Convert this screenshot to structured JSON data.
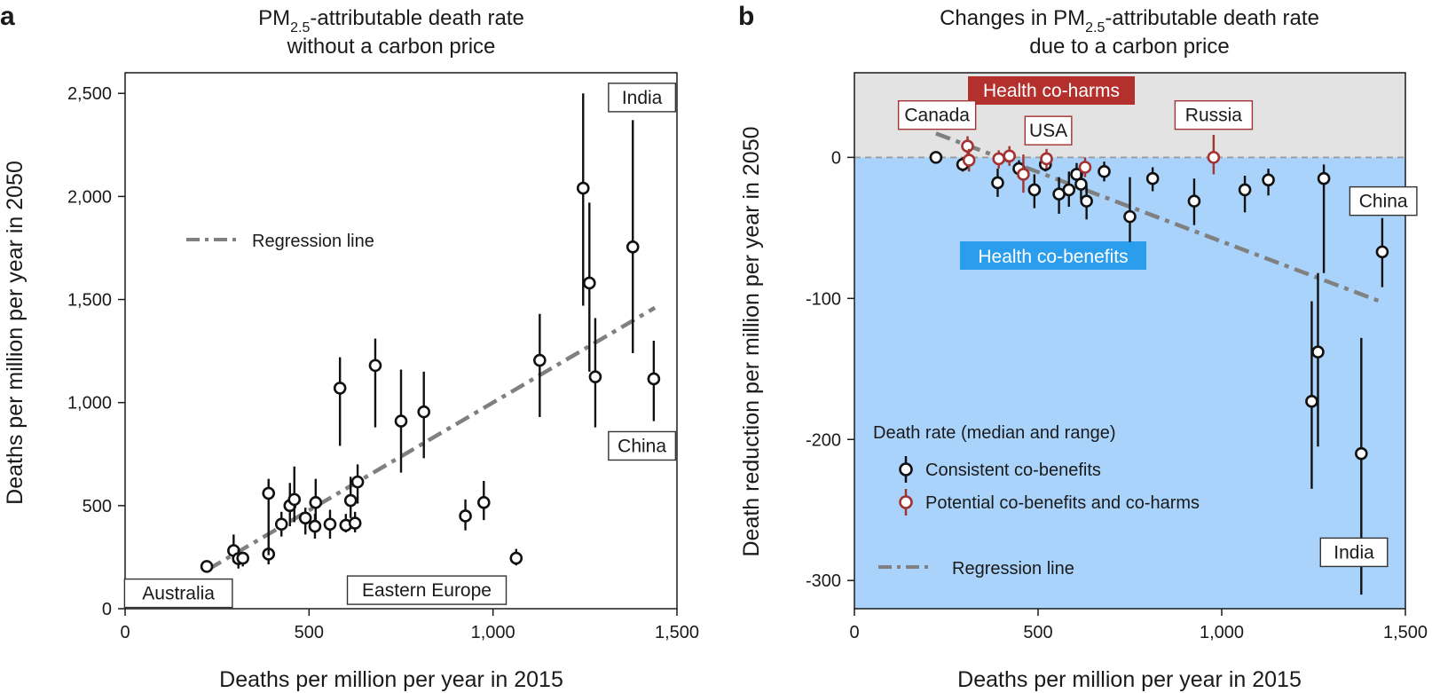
{
  "panel_a": {
    "letter": "a",
    "title_line1_pre": "PM",
    "title_line1_sub": "2.5",
    "title_line1_post": "-attributable death rate",
    "title_line2": "without a carbon price"
  },
  "panel_b": {
    "letter": "b",
    "title_line1_pre": "Changes in PM",
    "title_line1_sub": "2.5",
    "title_line1_post": "-attributable death rate",
    "title_line2": "due to a carbon price",
    "band_coharms": "Health co-harms",
    "band_cobenefits": "Health co-benefits",
    "legend_title": "Death rate (median and range)",
    "legend_consistent": "Consistent co-benefits",
    "legend_potential": "Potential co-benefits and co-harms",
    "legend_regression": "Regression line"
  },
  "colors": {
    "black": "#111111",
    "red": "#a33230",
    "regression": "#808080",
    "cobenefit_bg": "#a9d3fb",
    "coharm_bg": "#e3e3e3",
    "coharm_label_bg": "#b3302d",
    "cobenefit_label_bg": "#2b9ded"
  },
  "chart_data": [
    {
      "type": "scatter",
      "title": "PM2.5-attributable death rate without a carbon price",
      "xlabel": "Deaths per million per year in 2015",
      "ylabel": "Deaths per million per year in 2050",
      "xlim": [
        0,
        1500
      ],
      "ylim": [
        0,
        2600
      ],
      "xticks": [
        0,
        500,
        1000,
        1500
      ],
      "xtick_labels": [
        "0",
        "500",
        "1,000",
        "1,500"
      ],
      "yticks": [
        0,
        500,
        1000,
        1500,
        2000,
        2500
      ],
      "ytick_labels": [
        "0",
        "500",
        "1,000",
        "1,500",
        "2,000",
        "2,500"
      ],
      "legend": "Regression line",
      "regression": {
        "x": [
          225,
          1440
        ],
        "y": [
          190,
          1460
        ]
      },
      "points": [
        {
          "x": 222,
          "y": 205,
          "lo": 175,
          "hi": 235
        },
        {
          "x": 295,
          "y": 282,
          "lo": 225,
          "hi": 360
        },
        {
          "x": 308,
          "y": 243,
          "lo": 195,
          "hi": 285
        },
        {
          "x": 320,
          "y": 245,
          "lo": 205,
          "hi": 275
        },
        {
          "x": 390,
          "y": 265,
          "lo": 215,
          "hi": 305
        },
        {
          "x": 390,
          "y": 560,
          "lo": 260,
          "hi": 630
        },
        {
          "x": 425,
          "y": 410,
          "lo": 350,
          "hi": 470
        },
        {
          "x": 448,
          "y": 500,
          "lo": 400,
          "hi": 610
        },
        {
          "x": 460,
          "y": 530,
          "lo": 420,
          "hi": 690
        },
        {
          "x": 490,
          "y": 440,
          "lo": 360,
          "hi": 490
        },
        {
          "x": 516,
          "y": 400,
          "lo": 340,
          "hi": 460
        },
        {
          "x": 518,
          "y": 515,
          "lo": 430,
          "hi": 630
        },
        {
          "x": 557,
          "y": 410,
          "lo": 340,
          "hi": 480
        },
        {
          "x": 584,
          "y": 1070,
          "lo": 790,
          "hi": 1220
        },
        {
          "x": 600,
          "y": 405,
          "lo": 370,
          "hi": 460
        },
        {
          "x": 613,
          "y": 525,
          "lo": 440,
          "hi": 640
        },
        {
          "x": 625,
          "y": 415,
          "lo": 370,
          "hi": 470
        },
        {
          "x": 632,
          "y": 615,
          "lo": 510,
          "hi": 700
        },
        {
          "x": 680,
          "y": 1180,
          "lo": 880,
          "hi": 1310
        },
        {
          "x": 750,
          "y": 910,
          "lo": 660,
          "hi": 1160
        },
        {
          "x": 812,
          "y": 955,
          "lo": 730,
          "hi": 1150
        },
        {
          "x": 925,
          "y": 450,
          "lo": 380,
          "hi": 530
        },
        {
          "x": 975,
          "y": 515,
          "lo": 430,
          "hi": 620
        },
        {
          "x": 1063,
          "y": 245,
          "lo": 210,
          "hi": 290
        },
        {
          "x": 1127,
          "y": 1205,
          "lo": 930,
          "hi": 1430
        },
        {
          "x": 1245,
          "y": 2040,
          "lo": 1470,
          "hi": 2500
        },
        {
          "x": 1262,
          "y": 1580,
          "lo": 1150,
          "hi": 1970
        },
        {
          "x": 1278,
          "y": 1125,
          "lo": 880,
          "hi": 1410
        },
        {
          "x": 1380,
          "y": 1755,
          "lo": 1240,
          "hi": 2370
        },
        {
          "x": 1437,
          "y": 1115,
          "lo": 910,
          "hi": 1300
        }
      ],
      "annotations": [
        {
          "label": "India",
          "x": 1405,
          "y": 2480
        },
        {
          "label": "China",
          "x": 1405,
          "y": 790
        },
        {
          "label": "Australia",
          "x": 145,
          "y": 75
        },
        {
          "label": "Eastern Europe",
          "x": 820,
          "y": 90
        }
      ]
    },
    {
      "type": "scatter",
      "title": "Changes in PM2.5-attributable death rate due to a carbon price",
      "xlabel": "Deaths per million per year in 2015",
      "ylabel": "Death reduction per million per year in 2050",
      "xlim": [
        0,
        1500
      ],
      "ylim": [
        -320,
        60
      ],
      "xticks": [
        0,
        500,
        1000,
        1500
      ],
      "xtick_labels": [
        "0",
        "500",
        "1,000",
        "1,500"
      ],
      "yticks": [
        -300,
        -200,
        -100,
        0
      ],
      "ytick_labels": [
        "-300",
        "-200",
        "-100",
        "0"
      ],
      "legend": [
        "Consistent co-benefits",
        "Potential co-benefits and co-harms",
        "Regression line"
      ],
      "regression": {
        "x": [
          222,
          1440
        ],
        "y": [
          17,
          -103
        ]
      },
      "points": [
        {
          "x": 222,
          "y": 0,
          "lo": -2,
          "hi": 1,
          "group": "consistent"
        },
        {
          "x": 295,
          "y": -5,
          "lo": -10,
          "hi": 0,
          "group": "consistent"
        },
        {
          "x": 308,
          "y": 8,
          "lo": -2,
          "hi": 15,
          "group": "potential"
        },
        {
          "x": 312,
          "y": -2,
          "lo": -10,
          "hi": 6,
          "group": "potential"
        },
        {
          "x": 390,
          "y": -18,
          "lo": -28,
          "hi": -8,
          "group": "consistent"
        },
        {
          "x": 393,
          "y": -1,
          "lo": -8,
          "hi": 5,
          "group": "potential"
        },
        {
          "x": 422,
          "y": 1,
          "lo": -6,
          "hi": 8,
          "group": "potential"
        },
        {
          "x": 448,
          "y": -8,
          "lo": -14,
          "hi": -2,
          "group": "consistent"
        },
        {
          "x": 460,
          "y": -12,
          "lo": -25,
          "hi": 2,
          "group": "potential"
        },
        {
          "x": 490,
          "y": -23,
          "lo": -36,
          "hi": -12,
          "group": "consistent"
        },
        {
          "x": 520,
          "y": -5,
          "lo": -10,
          "hi": 0,
          "group": "consistent"
        },
        {
          "x": 523,
          "y": -1,
          "lo": -8,
          "hi": 6,
          "group": "potential"
        },
        {
          "x": 557,
          "y": -26,
          "lo": -40,
          "hi": -14,
          "group": "consistent"
        },
        {
          "x": 584,
          "y": -23,
          "lo": -35,
          "hi": -10,
          "group": "consistent"
        },
        {
          "x": 605,
          "y": -12,
          "lo": -22,
          "hi": -4,
          "group": "consistent"
        },
        {
          "x": 617,
          "y": -19,
          "lo": -30,
          "hi": -8,
          "group": "consistent"
        },
        {
          "x": 628,
          "y": -7,
          "lo": -14,
          "hi": 0,
          "group": "potential"
        },
        {
          "x": 632,
          "y": -31,
          "lo": -44,
          "hi": -20,
          "group": "consistent"
        },
        {
          "x": 680,
          "y": -10,
          "lo": -17,
          "hi": -3,
          "group": "consistent"
        },
        {
          "x": 750,
          "y": -42,
          "lo": -60,
          "hi": -14,
          "group": "consistent"
        },
        {
          "x": 812,
          "y": -15,
          "lo": -24,
          "hi": -7,
          "group": "consistent"
        },
        {
          "x": 925,
          "y": -31,
          "lo": -48,
          "hi": -15,
          "group": "consistent"
        },
        {
          "x": 978,
          "y": 0,
          "lo": -12,
          "hi": 16,
          "group": "potential"
        },
        {
          "x": 1063,
          "y": -23,
          "lo": -39,
          "hi": -13,
          "group": "consistent"
        },
        {
          "x": 1127,
          "y": -16,
          "lo": -27,
          "hi": -8,
          "group": "consistent"
        },
        {
          "x": 1245,
          "y": -173,
          "lo": -235,
          "hi": -102,
          "group": "consistent"
        },
        {
          "x": 1262,
          "y": -138,
          "lo": -205,
          "hi": -82,
          "group": "consistent"
        },
        {
          "x": 1278,
          "y": -15,
          "lo": -82,
          "hi": -5,
          "group": "consistent"
        },
        {
          "x": 1380,
          "y": -210,
          "lo": -310,
          "hi": -128,
          "group": "consistent"
        },
        {
          "x": 1437,
          "y": -67,
          "lo": -92,
          "hi": -43,
          "group": "consistent"
        }
      ],
      "annotations": [
        {
          "label": "Canada",
          "x": 225,
          "y": 30,
          "color": "red"
        },
        {
          "label": "USA",
          "x": 528,
          "y": 19,
          "color": "red"
        },
        {
          "label": "Russia",
          "x": 978,
          "y": 30,
          "color": "red"
        },
        {
          "label": "China",
          "x": 1440,
          "y": -31,
          "color": "black"
        },
        {
          "label": "India",
          "x": 1360,
          "y": -280,
          "color": "black"
        }
      ]
    }
  ]
}
